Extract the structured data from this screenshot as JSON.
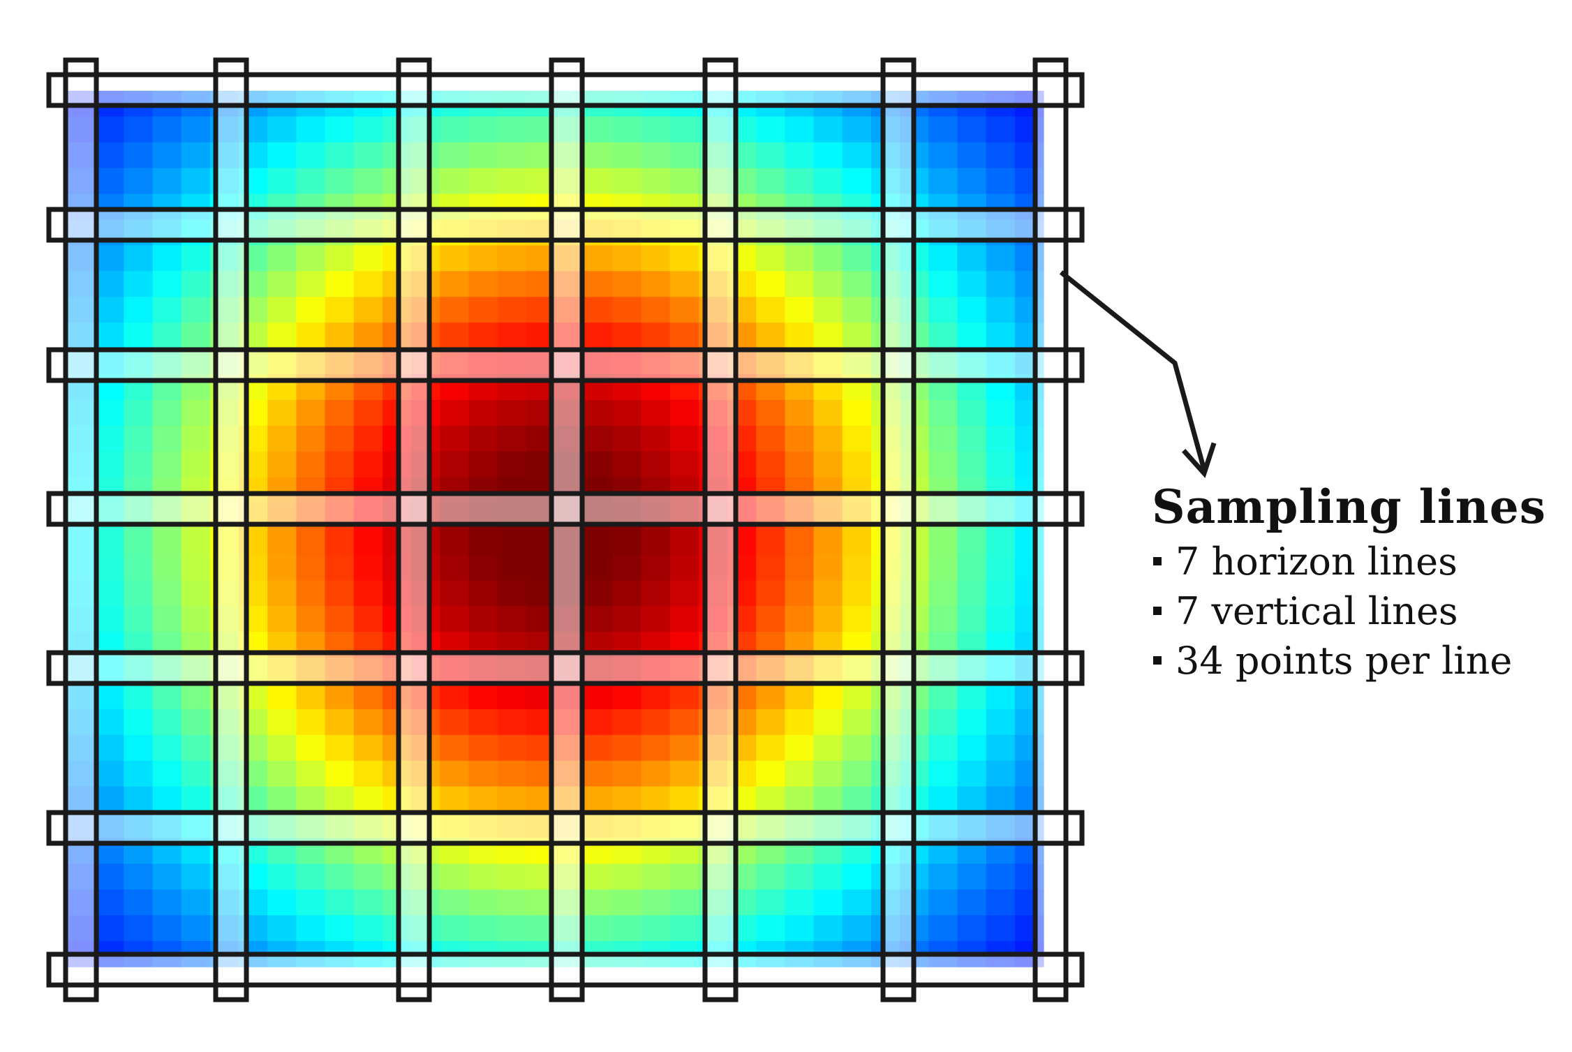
{
  "legend": {
    "title": "Sampling lines",
    "items": [
      "7 horizon lines",
      "7 vertical lines",
      "34 points per line"
    ]
  },
  "heatmap": {
    "colormap": "jet",
    "grid_resolution": 34,
    "sampling_line_count_horizontal": 7,
    "sampling_line_count_vertical": 7
  },
  "colors": {
    "outline": "#1a1a1a",
    "sampling_band": "#ffffff",
    "arrow": "#1a1a1a"
  }
}
